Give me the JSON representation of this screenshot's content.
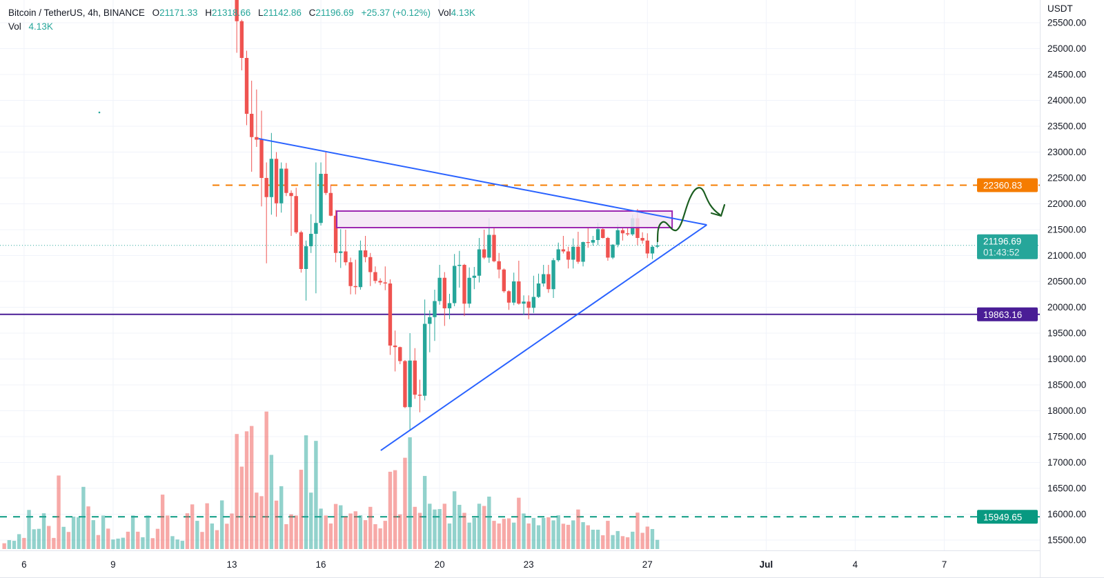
{
  "header": {
    "symbol": "Bitcoin / TetherUS, 4h, BINANCE",
    "open_label": "O",
    "open": "21171.33",
    "high_label": "H",
    "high": "21318.66",
    "low_label": "L",
    "low": "21142.86",
    "close_label": "C",
    "close": "21196.69",
    "change": "+25.37 (+0.12%)",
    "vol_label": "Vol",
    "vol": "4.13K"
  },
  "volume_legend": {
    "label": "Vol",
    "value": "4.13K"
  },
  "price_axis": {
    "unit": "USDT",
    "ticks": [
      "15500.00",
      "16000.00",
      "16500.00",
      "17000.00",
      "17500.00",
      "18000.00",
      "18500.00",
      "19000.00",
      "19500.00",
      "20000.00",
      "20500.00",
      "21000.00",
      "21500.00",
      "22000.00",
      "22500.00",
      "23000.00",
      "23500.00",
      "24000.00",
      "24500.00",
      "25000.00",
      "25500.00"
    ]
  },
  "time_axis": {
    "ticks": [
      "6",
      "9",
      "13",
      "16",
      "20",
      "23",
      "27",
      "Jul",
      "4",
      "7"
    ]
  },
  "price_lines": [
    {
      "price": 22360.83,
      "label": "22360.83",
      "color": "#f57c00",
      "style": "dashed"
    },
    {
      "price": 19863.16,
      "label": "19863.16",
      "color": "#4a1d96",
      "style": "solid"
    },
    {
      "price": 15949.65,
      "label": "15949.65",
      "color": "#089981",
      "style": "dashed"
    }
  ],
  "current_price": {
    "price": 21196.69,
    "label": "21196.69",
    "countdown": "01:43:52",
    "color": "#26a69a"
  },
  "colors": {
    "up": "#26a69a",
    "down": "#ef5350",
    "trendline": "#2962ff",
    "zone_border": "#9c27b0",
    "zone_fill": "#f3e5f5",
    "arrow": "#1b5e20"
  },
  "chart_data": {
    "type": "candlestick",
    "timeframe": "4h",
    "ylim": [
      15500,
      25500
    ],
    "grid": true,
    "candles_ohlc": [
      [
        27100,
        27300,
        26500,
        26580
      ],
      [
        26580,
        26650,
        24920,
        25530
      ],
      [
        25530,
        25560,
        24580,
        24820
      ],
      [
        24820,
        24960,
        23520,
        23740
      ],
      [
        23740,
        24380,
        22620,
        23290
      ],
      [
        23290,
        24210,
        23100,
        23240
      ],
      [
        23240,
        23800,
        21950,
        22500
      ],
      [
        22500,
        22800,
        20850,
        22130
      ],
      [
        22130,
        23370,
        21790,
        22870
      ],
      [
        22870,
        23000,
        21750,
        22010
      ],
      [
        22010,
        22800,
        21830,
        22680
      ],
      [
        22680,
        22790,
        22150,
        22210
      ],
      [
        22210,
        22260,
        21380,
        22150
      ],
      [
        22150,
        22310,
        21420,
        21450
      ],
      [
        21450,
        21480,
        20670,
        20740
      ],
      [
        20740,
        21290,
        20130,
        21180
      ],
      [
        21180,
        21800,
        21050,
        21420
      ],
      [
        21420,
        22800,
        20270,
        21630
      ],
      [
        21630,
        22800,
        21580,
        22580
      ],
      [
        22580,
        23000,
        22170,
        22210
      ],
      [
        22210,
        22370,
        21760,
        21770
      ],
      [
        21770,
        21880,
        20870,
        21050
      ],
      [
        21050,
        21510,
        20760,
        21080
      ],
      [
        21080,
        21500,
        20810,
        20870
      ],
      [
        20870,
        20960,
        20250,
        20410
      ],
      [
        20410,
        20920,
        20250,
        20390
      ],
      [
        20390,
        21290,
        20340,
        21100
      ],
      [
        21100,
        21380,
        20870,
        20970
      ],
      [
        20970,
        21050,
        20410,
        20680
      ],
      [
        20680,
        20790,
        20460,
        20510
      ],
      [
        20510,
        20560,
        20430,
        20480
      ],
      [
        20480,
        20790,
        20330,
        20460
      ],
      [
        20460,
        20540,
        19080,
        19260
      ],
      [
        19260,
        19550,
        18760,
        19230
      ],
      [
        19230,
        19240,
        18900,
        18960
      ],
      [
        18960,
        18980,
        18050,
        18070
      ],
      [
        18070,
        19500,
        17620,
        18970
      ],
      [
        18970,
        19210,
        18230,
        18310
      ],
      [
        18310,
        18600,
        17970,
        18290
      ],
      [
        18290,
        20150,
        18200,
        19680
      ],
      [
        19680,
        19940,
        19130,
        19810
      ],
      [
        19810,
        20340,
        19350,
        20120
      ],
      [
        20120,
        20820,
        20050,
        20570
      ],
      [
        20570,
        20680,
        19640,
        19980
      ],
      [
        19980,
        20260,
        19770,
        20080
      ],
      [
        20080,
        21030,
        20020,
        20800
      ],
      [
        20800,
        21090,
        20380,
        20820
      ],
      [
        20820,
        20840,
        19830,
        20070
      ],
      [
        20070,
        20770,
        19990,
        20570
      ],
      [
        20570,
        20780,
        20350,
        20610
      ],
      [
        20610,
        21340,
        20480,
        21120
      ],
      [
        21120,
        21500,
        20930,
        20960
      ],
      [
        20960,
        21720,
        20860,
        21400
      ],
      [
        21400,
        21550,
        20870,
        20890
      ],
      [
        20890,
        21050,
        20560,
        20730
      ],
      [
        20730,
        20750,
        20280,
        20310
      ],
      [
        20310,
        20330,
        19950,
        20090
      ],
      [
        20090,
        20670,
        20040,
        20500
      ],
      [
        20500,
        20900,
        20050,
        20070
      ],
      [
        20070,
        20230,
        19850,
        20110
      ],
      [
        20110,
        20230,
        19770,
        19990
      ],
      [
        19990,
        20610,
        19890,
        20200
      ],
      [
        20200,
        20650,
        20180,
        20460
      ],
      [
        20460,
        20820,
        20400,
        20640
      ],
      [
        20640,
        20820,
        20280,
        20350
      ],
      [
        20350,
        20950,
        20180,
        20910
      ],
      [
        20910,
        21250,
        20880,
        21120
      ],
      [
        21120,
        21380,
        21040,
        21080
      ],
      [
        21080,
        21170,
        20750,
        20920
      ],
      [
        20920,
        21330,
        20750,
        21170
      ],
      [
        21170,
        21460,
        20840,
        20880
      ],
      [
        20880,
        21270,
        20790,
        21260
      ],
      [
        21260,
        21550,
        21150,
        21250
      ],
      [
        21250,
        21380,
        21190,
        21300
      ],
      [
        21300,
        21630,
        21200,
        21510
      ],
      [
        21510,
        21530,
        21330,
        21340
      ],
      [
        21340,
        21360,
        20900,
        20960
      ],
      [
        20960,
        21220,
        20930,
        21210
      ],
      [
        21210,
        21600,
        21160,
        21490
      ],
      [
        21490,
        21550,
        21290,
        21430
      ],
      [
        21430,
        21550,
        21380,
        21410
      ],
      [
        21410,
        21790,
        21380,
        21720
      ],
      [
        21720,
        21900,
        21200,
        21340
      ],
      [
        21340,
        21450,
        21230,
        21290
      ],
      [
        21290,
        21430,
        20950,
        21040
      ],
      [
        21040,
        21200,
        20930,
        21170
      ],
      [
        21171.33,
        21318.66,
        21142.86,
        21196.69
      ]
    ],
    "candle_volume_k": [
      16.0,
      51.8,
      37.1,
      53.0,
      55.4,
      25.4,
      23.8,
      61.9,
      42.4,
      21.8,
      28.3,
      11.2,
      15.6,
      15.1,
      35.7,
      51.2,
      25.4,
      48.7,
      18.2,
      15.1,
      11.5,
      20.3,
      19.7,
      14.6,
      16.0,
      17.0,
      15.2,
      13.0,
      19.0,
      11.2,
      9.3,
      12.7,
      34.8,
      35.5,
      15.6,
      41.1,
      50.3,
      19.0,
      16.3,
      32.9,
      20.4,
      17.8,
      18.0,
      20.4,
      11.5,
      26.0,
      19.9,
      16.3,
      11.9,
      14.0,
      20.4,
      19.4,
      23.6,
      12.7,
      11.5,
      13.6,
      13.8,
      11.9,
      23.1,
      16.0,
      11.5,
      14.0,
      10.7,
      14.0,
      14.3,
      12.9,
      15.2,
      11.4,
      10.9,
      12.9,
      17.8,
      12.1,
      10.7,
      8.7,
      8.7,
      6.2,
      12.7,
      6.3,
      8.1,
      5.8,
      5.3,
      7.8,
      16.4,
      7.3,
      10.1,
      9.0,
      4.13
    ],
    "earlier_volume_k": [
      2.6,
      4.0,
      3.7,
      6.7,
      5.0,
      17.6,
      8.9,
      9.1,
      16.1,
      10.4,
      5.0,
      33.1,
      10.0,
      7.7,
      14.6,
      14.3,
      28.0,
      19.2,
      13.0,
      6.3,
      15.1,
      9.2,
      4.3,
      4.7,
      5.1,
      7.8,
      15.1,
      7.8,
      5.3,
      15.1,
      4.9,
      9.1,
      24.5,
      15.1,
      5.8,
      4.3,
      3.7,
      16.1,
      20.1,
      12.7,
      7.7,
      20.6,
      11.5,
      8.5,
      21.9,
      11.4
    ],
    "earlier_volume_up": [
      0,
      1,
      1,
      1,
      0,
      1,
      1,
      1,
      1,
      0,
      0,
      0,
      1,
      0,
      1,
      1,
      1,
      0,
      1,
      0,
      1,
      0,
      1,
      1,
      1,
      0,
      1,
      0,
      1,
      1,
      0,
      0,
      0,
      0,
      1,
      1,
      1,
      0,
      0,
      1,
      0,
      0,
      1,
      0,
      1,
      0
    ]
  }
}
